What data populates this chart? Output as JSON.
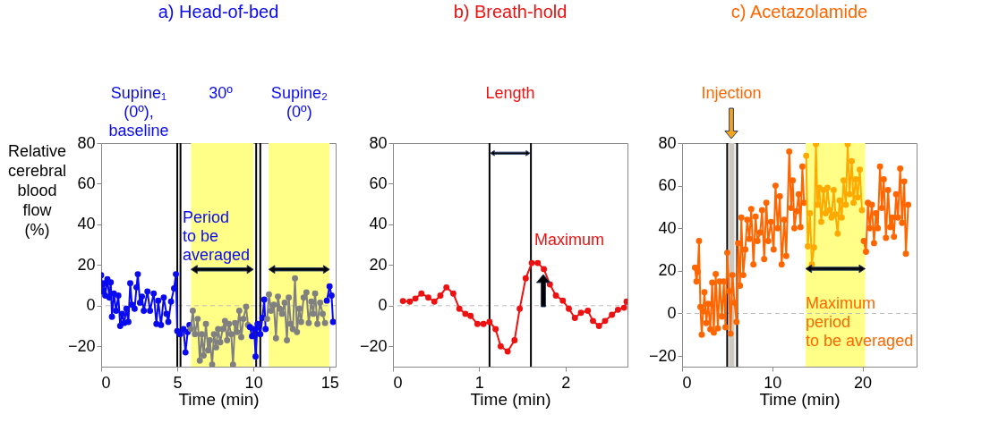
{
  "chart_data": [
    {
      "type": "line",
      "title": "a) Head-of-bed",
      "xlabel": "Time (min)",
      "ylabel": "Relative cerebral blood flow (%)",
      "xlim": [
        0,
        15.4
      ],
      "xticks": [
        0,
        5,
        10,
        15
      ],
      "ylim": [
        -30,
        80
      ],
      "yticks": [
        -20,
        0,
        20,
        40,
        60,
        80
      ],
      "marker": "circle",
      "line_style": "solid",
      "grid": false,
      "bands": [
        {
          "axis": "x",
          "from": 5.9,
          "to": 10,
          "color": "#ffff88"
        },
        {
          "axis": "x",
          "from": 11,
          "to": 15,
          "color": "#ffff88"
        }
      ],
      "ref_lines": [
        {
          "axis": "y",
          "value": 0,
          "color": "#bbbbbb",
          "line_style": "dashed"
        },
        {
          "axis": "x",
          "value": 5.0,
          "color": "#000000",
          "line_style": "solid"
        },
        {
          "axis": "x",
          "value": 5.21,
          "color": "#000000",
          "line_style": "solid"
        },
        {
          "axis": "x",
          "value": 10.18,
          "color": "#000000",
          "line_style": "solid"
        },
        {
          "axis": "x",
          "value": 10.45,
          "color": "#000000",
          "line_style": "solid"
        }
      ],
      "annotations": [
        "Supine₁\n(0º),\nbaseline",
        "30º",
        "Supine₂\n(0º)",
        {
          "text": "Period\nto be\naveraged",
          "x": 5.35,
          "y": 47
        }
      ],
      "series": [
        {
          "color": "#0a0af0",
          "x": [
            0,
            0.09,
            0.18,
            0.27,
            0.41,
            0.54,
            0.63,
            0.71,
            0.84,
            0.98,
            1.13,
            1.25,
            1.38,
            1.52,
            1.66,
            1.79,
            1.91,
            2.02,
            2.2,
            2.32,
            2.41,
            2.55,
            2.68,
            2.8,
            3.04,
            3.21,
            3.45,
            3.63,
            3.75,
            3.93,
            4.11,
            4.29,
            4.41,
            4.59,
            4.79,
            4.91,
            5.0,
            5.18,
            5.41,
            5.54,
            5.68,
            5.8
          ],
          "values": [
            15,
            7,
            11,
            5,
            13,
            4,
            11.5,
            -5.5,
            6,
            -2.5,
            5,
            -10,
            -4,
            -8.5,
            -1.5,
            -8,
            11,
            0.5,
            -1.5,
            9,
            15.5,
            1.5,
            4.5,
            -2.5,
            7,
            -2.5,
            6,
            -9,
            2.5,
            -9.5,
            4,
            -4,
            -8,
            2,
            8.5,
            15.5,
            -12.5,
            -14,
            -11.5,
            -23,
            -13,
            -9.5
          ]
        },
        {
          "color": "#808080",
          "x": [
            5.89,
            6.02,
            6.16,
            6.34,
            6.48,
            6.61,
            6.73,
            6.88,
            7.02,
            7.14,
            7.29,
            7.41,
            7.55,
            7.68,
            7.82,
            7.98,
            8.13,
            8.27,
            8.39,
            8.54,
            8.66,
            8.79,
            8.93,
            9.07,
            9.2,
            9.34,
            9.52,
            9.64
          ],
          "values": [
            -11.5,
            -2.5,
            -14,
            -6.5,
            -27,
            -14,
            -24.5,
            -9,
            -22,
            -17,
            -29,
            -14,
            -20.5,
            -11.5,
            -18,
            -11.5,
            -7.5,
            -17,
            -9,
            -14,
            -29,
            -8.5,
            -13,
            -2.5,
            -15.5,
            -6.5,
            -0.5,
            -9.5
          ]
        },
        {
          "color": "#0a0af0",
          "x": [
            9.77,
            9.91,
            10.05,
            10.14,
            10.27,
            10.45,
            10.59,
            10.71,
            10.8
          ],
          "values": [
            -10.5,
            -15,
            -11.5,
            -25,
            -9,
            -14,
            -6,
            3,
            -11.5
          ]
        },
        {
          "color": "#808080",
          "x": [
            10.9,
            11.02,
            11.16,
            11.34,
            11.48,
            11.61,
            11.73,
            11.88,
            12.05,
            12.2,
            12.32,
            12.45,
            12.59,
            12.73,
            12.86,
            13.0,
            13.13,
            13.3,
            13.48,
            13.63,
            13.8,
            13.93,
            14.05,
            14.2,
            14.38,
            14.55,
            14.7
          ],
          "values": [
            -6.5,
            5.5,
            -2.5,
            0.5,
            -16,
            4.5,
            -1.5,
            -4,
            1.5,
            -17,
            4,
            -9,
            -11.5,
            13.5,
            -13,
            -1.5,
            -8,
            4,
            6.5,
            -8.5,
            2,
            -4,
            6,
            -9,
            1.5,
            -4,
            -8.5
          ]
        },
        {
          "color": "#0a0af0",
          "x": [
            14.82,
            15.0,
            15.13,
            15.23
          ],
          "values": [
            2.5,
            9.5,
            5,
            -8
          ]
        }
      ]
    },
    {
      "type": "line",
      "title": "b) Breath-hold",
      "xlabel": "Time (min)",
      "xlim": [
        0,
        2.72
      ],
      "xticks": [
        0,
        1,
        2
      ],
      "ylim": [
        -30,
        80
      ],
      "yticks": [
        -20,
        0,
        20,
        40,
        60,
        80
      ],
      "marker": "circle",
      "line_style": "solid",
      "grid": false,
      "ref_lines": [
        {
          "axis": "y",
          "value": 0,
          "color": "#bbbbbb",
          "line_style": "dashed"
        },
        {
          "axis": "x",
          "value": 1.12,
          "color": "#000000",
          "line_style": "solid"
        },
        {
          "axis": "x",
          "value": 1.6,
          "color": "#000000",
          "line_style": "solid"
        }
      ],
      "annotations": [
        "Length",
        {
          "text": "Maximum",
          "x": 1.64,
          "y": 36
        }
      ],
      "series": [
        {
          "color": "#ee1111",
          "x": [
            0.116,
            0.195,
            0.26,
            0.33,
            0.41,
            0.48,
            0.55,
            0.62,
            0.7,
            0.77,
            0.84,
            0.9,
            0.98,
            1.05,
            1.12,
            1.19,
            1.25,
            1.33,
            1.41,
            1.47,
            1.54,
            1.61,
            1.68,
            1.75,
            1.82,
            1.89,
            1.97,
            2.04,
            2.11,
            2.18,
            2.26,
            2.32,
            2.39,
            2.46,
            2.54,
            2.61,
            2.68,
            2.71
          ],
          "values": [
            2.3,
            2,
            3.5,
            6,
            4,
            2,
            5,
            9,
            6,
            -1.5,
            -4,
            -5,
            -9,
            -9,
            -8,
            -11.5,
            -20,
            -22.5,
            -17,
            -1.5,
            13.5,
            21,
            21,
            18,
            10.5,
            5,
            2.5,
            -1.5,
            -6,
            -3.5,
            -2.5,
            -7.5,
            -10,
            -7.5,
            -4.5,
            -2,
            -1,
            2
          ]
        }
      ]
    },
    {
      "type": "line",
      "title": "c) Acetazolamide",
      "xlabel": "Time (min)",
      "xlim": [
        0,
        26
      ],
      "xticks": [
        0,
        10,
        20
      ],
      "ylim": [
        -25,
        80
      ],
      "yticks": [
        -20,
        0,
        20,
        40,
        60,
        80
      ],
      "marker": "circle",
      "line_style": "solid",
      "grid": false,
      "bands": [
        {
          "axis": "x",
          "from": 5.2,
          "to": 5.8,
          "color": "#cdc8c0"
        },
        {
          "axis": "x",
          "from": 13.7,
          "to": 20.3,
          "color": "#ffff88"
        }
      ],
      "ref_lines": [
        {
          "axis": "y",
          "value": 0,
          "color": "#bbbbbb",
          "line_style": "dashed"
        },
        {
          "axis": "x",
          "value": 5.0,
          "color": "#000000",
          "line_style": "solid"
        },
        {
          "axis": "x",
          "value": 6.1,
          "color": "#000000",
          "line_style": "solid"
        }
      ],
      "annotations": [
        "Injection",
        {
          "text": "Maximum\nperiod\nto be averaged",
          "x": 13.7,
          "y": 8
        }
      ],
      "series": [
        {
          "color": "#ff6600",
          "x": [
            1.43,
            1.6,
            1.73,
            1.88,
            2.03,
            2.18,
            2.33,
            2.48,
            2.69,
            2.9,
            3.13,
            3.34,
            3.52,
            3.73,
            3.97,
            4.18,
            4.42,
            4.63,
            4.81,
            5.01,
            5.22,
            5.37,
            5.58,
            5.82,
            6.03,
            6.21,
            6.42,
            6.57,
            6.78,
            7.01,
            7.22,
            7.46,
            7.67,
            7.91,
            8.15,
            8.36,
            8.66,
            8.87,
            9.1,
            9.34,
            9.55,
            9.85,
            10.15,
            10.36,
            10.6,
            10.84,
            11.04,
            11.34,
            11.55,
            11.88,
            12.09,
            12.27,
            12.45,
            12.69,
            12.93,
            13.13,
            13.34,
            13.52
          ],
          "values": [
            21.5,
            15,
            19.5,
            34,
            3,
            -10,
            1,
            10,
            -4.5,
            4.5,
            -7.5,
            14.5,
            -9,
            18.5,
            -7,
            15,
            -1.5,
            15,
            -6.5,
            28.5,
            10.5,
            -9.5,
            18,
            5,
            -4,
            33,
            13,
            45,
            18,
            30,
            44,
            35,
            49,
            23,
            45.5,
            34,
            38,
            48.5,
            25.5,
            52,
            34,
            43,
            30,
            60,
            40,
            55,
            23,
            44,
            27,
            76,
            49.5,
            62.5,
            40,
            48,
            56,
            40.5,
            69,
            52
          ]
        },
        {
          "color": "#ffaa00",
          "x": [
            13.76,
            13.94,
            14.18,
            14.39,
            14.63,
            14.84,
            15.01,
            15.22,
            15.43,
            15.67,
            15.91,
            16.12,
            16.36,
            16.57,
            16.81,
            17.01,
            17.25,
            17.46,
            17.7,
            17.91,
            18.15,
            18.36,
            18.57,
            18.81,
            19.01,
            19.25,
            19.46,
            19.7,
            19.94
          ],
          "values": [
            74,
            31.5,
            47,
            23,
            31,
            79.5,
            51,
            59,
            43,
            58,
            47,
            59,
            48.5,
            45,
            58,
            46.5,
            37.5,
            53,
            45,
            62.5,
            51,
            79.5,
            56,
            71.5,
            52,
            63,
            54.5,
            67.5,
            48.5
          ]
        },
        {
          "color": "#ff6600",
          "x": [
            20.15,
            20.39,
            20.6,
            20.81,
            21.04,
            21.28,
            21.49,
            21.7,
            21.94,
            22.15,
            22.36,
            22.6,
            22.84,
            23.07,
            23.28,
            23.49,
            23.73,
            23.94,
            24.18,
            24.39,
            24.63,
            24.81,
            25.07
          ],
          "values": [
            34,
            29,
            52,
            40,
            51,
            33,
            47,
            40,
            69,
            49.5,
            63,
            35.5,
            58,
            40.5,
            45,
            36,
            56,
            45,
            68,
            42.5,
            62,
            28,
            51
          ]
        }
      ]
    }
  ]
}
